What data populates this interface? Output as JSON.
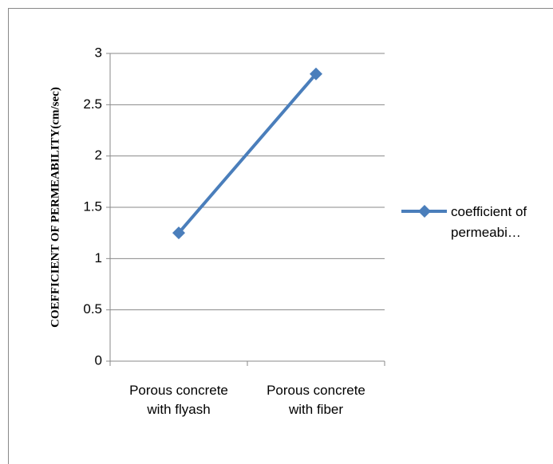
{
  "chart_data": {
    "type": "line",
    "y_label": "COEFFICIENT OF PERMEABILITY(cm/sec)",
    "categories": [
      "Porous concrete with flyash",
      "Porous concrete with fiber"
    ],
    "series": [
      {
        "name": "coefficient of permeabi…",
        "color": "#4a7ebb",
        "values": [
          1.25,
          2.8
        ]
      }
    ],
    "ylim": [
      0,
      3
    ],
    "yticks": [
      0,
      0.5,
      1,
      1.5,
      2,
      2.5,
      3
    ],
    "grid": true,
    "legend": "right"
  }
}
